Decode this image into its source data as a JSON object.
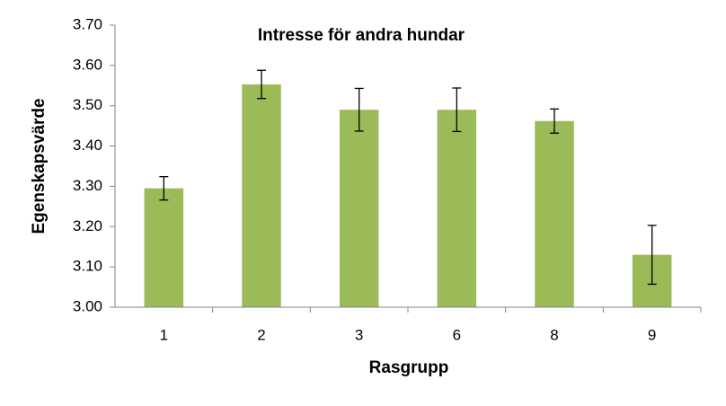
{
  "chart_data": {
    "type": "bar",
    "title": "Intresse för andra hundar",
    "x_label": "Rasgrupp",
    "y_label": "Egenskapsvärde",
    "categories": [
      "1",
      "2",
      "3",
      "6",
      "8",
      "9"
    ],
    "values": [
      3.295,
      3.553,
      3.49,
      3.49,
      3.462,
      3.13
    ],
    "errors": [
      0.029,
      0.035,
      0.053,
      0.054,
      0.03,
      0.073
    ],
    "color": "#9bbb59",
    "ylim": [
      3.0,
      3.7
    ],
    "yticks": [
      {
        "value": 3.0,
        "label": "3.00"
      },
      {
        "value": 3.1,
        "label": "3.10"
      },
      {
        "value": 3.2,
        "label": "3.20"
      },
      {
        "value": 3.3,
        "label": "3.30"
      },
      {
        "value": 3.4,
        "label": "3.40"
      },
      {
        "value": 3.5,
        "label": "3.50"
      },
      {
        "value": 3.6,
        "label": "3.60"
      },
      {
        "value": 3.7,
        "label": "3.70"
      }
    ],
    "grid": false
  }
}
